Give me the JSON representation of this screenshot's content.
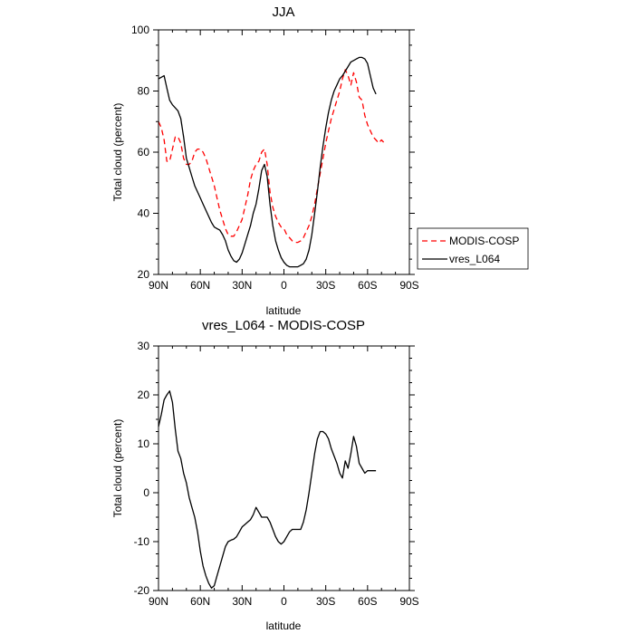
{
  "chart_data": [
    {
      "type": "line",
      "title": "JJA",
      "xlabel": "latitude",
      "ylabel": "Total cloud (percent)",
      "xlim": [
        90,
        -90
      ],
      "ylim": [
        20,
        100
      ],
      "x_ticks": [
        90,
        60,
        30,
        0,
        -30,
        -60,
        -90
      ],
      "x_tick_labels": [
        "90N",
        "60N",
        "30N",
        "0",
        "30S",
        "60S",
        "90S"
      ],
      "y_ticks": [
        20,
        40,
        60,
        80,
        100
      ],
      "y_tick_labels": [
        "20",
        "40",
        "60",
        "80",
        "100"
      ],
      "legend_position": "outside-right",
      "series": [
        {
          "name": "MODIS-COSP",
          "color": "#ff0000",
          "dashed": true,
          "x": [
            90,
            88,
            86,
            84,
            82,
            80,
            78,
            76,
            74,
            72,
            70,
            68,
            66,
            64,
            62,
            60,
            58,
            56,
            54,
            52,
            50,
            48,
            46,
            44,
            42,
            40,
            38,
            36,
            34,
            32,
            30,
            28,
            26,
            24,
            22,
            20,
            18,
            16,
            14,
            12,
            10,
            8,
            6,
            4,
            2,
            0,
            -2,
            -4,
            -6,
            -8,
            -10,
            -12,
            -14,
            -16,
            -18,
            -20,
            -22,
            -24,
            -26,
            -28,
            -30,
            -32,
            -34,
            -36,
            -38,
            -40,
            -42,
            -44,
            -46,
            -48,
            -50,
            -52,
            -54,
            -56,
            -58,
            -60,
            -62,
            -64,
            -66,
            -68,
            -70,
            -72
          ],
          "y": [
            70,
            68,
            64,
            57,
            57,
            61,
            65,
            65,
            63,
            58,
            56,
            56,
            57,
            60,
            61,
            61,
            60,
            58,
            55,
            52,
            49,
            45,
            41,
            38,
            35,
            33,
            32.5,
            32.5,
            34,
            36,
            38,
            42,
            46,
            51,
            54,
            56,
            57,
            60,
            61,
            56,
            47,
            42,
            39,
            37,
            35.5,
            35,
            33,
            32,
            31,
            30.5,
            30.5,
            31,
            32,
            34,
            36,
            39,
            43,
            48,
            53,
            58,
            63,
            67,
            71,
            74,
            77,
            80,
            84,
            87,
            85,
            82,
            86,
            83,
            78,
            77,
            72,
            69,
            67,
            65,
            64,
            63,
            64,
            63
          ]
        },
        {
          "name": "vres_L064",
          "color": "#000000",
          "dashed": false,
          "x": [
            90,
            88,
            86,
            84,
            82,
            80,
            78,
            76,
            74,
            72,
            70,
            68,
            66,
            64,
            62,
            60,
            58,
            56,
            54,
            52,
            50,
            48,
            46,
            44,
            42,
            40,
            38,
            36,
            34,
            32,
            30,
            28,
            26,
            24,
            22,
            20,
            18,
            16,
            14,
            12,
            10,
            8,
            6,
            4,
            2,
            0,
            -2,
            -4,
            -6,
            -8,
            -10,
            -12,
            -14,
            -16,
            -18,
            -20,
            -22,
            -24,
            -26,
            -28,
            -30,
            -32,
            -34,
            -36,
            -38,
            -40,
            -42,
            -44,
            -46,
            -48,
            -50,
            -52,
            -54,
            -56,
            -58,
            -60,
            -62,
            -64,
            -66
          ],
          "y": [
            84,
            84.5,
            85,
            81,
            77,
            75.5,
            74.5,
            73.5,
            71,
            65,
            58,
            55,
            52,
            49,
            47,
            45,
            43,
            41,
            39,
            37,
            35.5,
            35,
            34.5,
            33,
            31,
            28,
            26,
            24.5,
            24,
            25,
            27,
            30,
            33,
            36,
            40,
            43,
            48,
            54,
            56,
            52,
            43,
            36,
            31,
            28,
            25.5,
            24,
            23,
            22.5,
            22.5,
            22.5,
            22.5,
            23,
            23.5,
            25,
            28,
            33,
            40,
            47,
            55,
            62,
            68,
            73,
            77,
            80,
            82,
            84,
            85,
            86.5,
            88,
            89.5,
            90,
            90.5,
            91,
            91,
            90.5,
            89,
            85,
            81,
            79
          ]
        }
      ]
    },
    {
      "type": "line",
      "title": "vres_L064 - MODIS-COSP",
      "xlabel": "latitude",
      "ylabel": "Total cloud (percent)",
      "xlim": [
        90,
        -90
      ],
      "ylim": [
        -20,
        30
      ],
      "x_ticks": [
        90,
        60,
        30,
        0,
        -30,
        -60,
        -90
      ],
      "x_tick_labels": [
        "90N",
        "60N",
        "30N",
        "0",
        "30S",
        "60S",
        "90S"
      ],
      "y_ticks": [
        -20,
        -10,
        0,
        10,
        20,
        30
      ],
      "y_tick_labels": [
        "-20",
        "-10",
        "0",
        "10",
        "20",
        "30"
      ],
      "series": [
        {
          "color": "#000000",
          "dashed": false,
          "x": [
            90,
            88,
            86,
            84,
            82,
            80,
            78,
            76,
            74,
            72,
            70,
            68,
            66,
            64,
            62,
            60,
            58,
            56,
            54,
            52,
            50,
            48,
            46,
            44,
            42,
            40,
            38,
            36,
            34,
            32,
            30,
            28,
            26,
            24,
            22,
            20,
            18,
            16,
            14,
            12,
            10,
            8,
            6,
            4,
            2,
            0,
            -2,
            -4,
            -6,
            -8,
            -10,
            -12,
            -14,
            -16,
            -18,
            -20,
            -22,
            -24,
            -26,
            -28,
            -30,
            -32,
            -34,
            -36,
            -38,
            -40,
            -42,
            -44,
            -46,
            -48,
            -50,
            -52,
            -54,
            -56,
            -58,
            -60,
            -62,
            -64,
            -66
          ],
          "y": [
            13.5,
            16,
            19,
            20,
            20.8,
            18.5,
            13,
            8.5,
            7,
            4,
            2,
            -1,
            -3,
            -5,
            -8,
            -12,
            -15,
            -17,
            -18.5,
            -19.5,
            -19,
            -17,
            -15,
            -13,
            -11,
            -10,
            -9.7,
            -9.5,
            -9,
            -8,
            -7,
            -6.5,
            -6,
            -5.5,
            -4.5,
            -3,
            -4,
            -5,
            -5,
            -5,
            -6,
            -7.5,
            -9,
            -10,
            -10.5,
            -10,
            -9,
            -8,
            -7.5,
            -7.5,
            -7.5,
            -7.5,
            -6,
            -3.5,
            0,
            4,
            8,
            11,
            12.5,
            12.5,
            12,
            11,
            9,
            7.5,
            6,
            4,
            3,
            6.5,
            5,
            8,
            11.5,
            9.5,
            6,
            5,
            4,
            4.5,
            4.5,
            4.5,
            4.5
          ]
        }
      ]
    }
  ]
}
